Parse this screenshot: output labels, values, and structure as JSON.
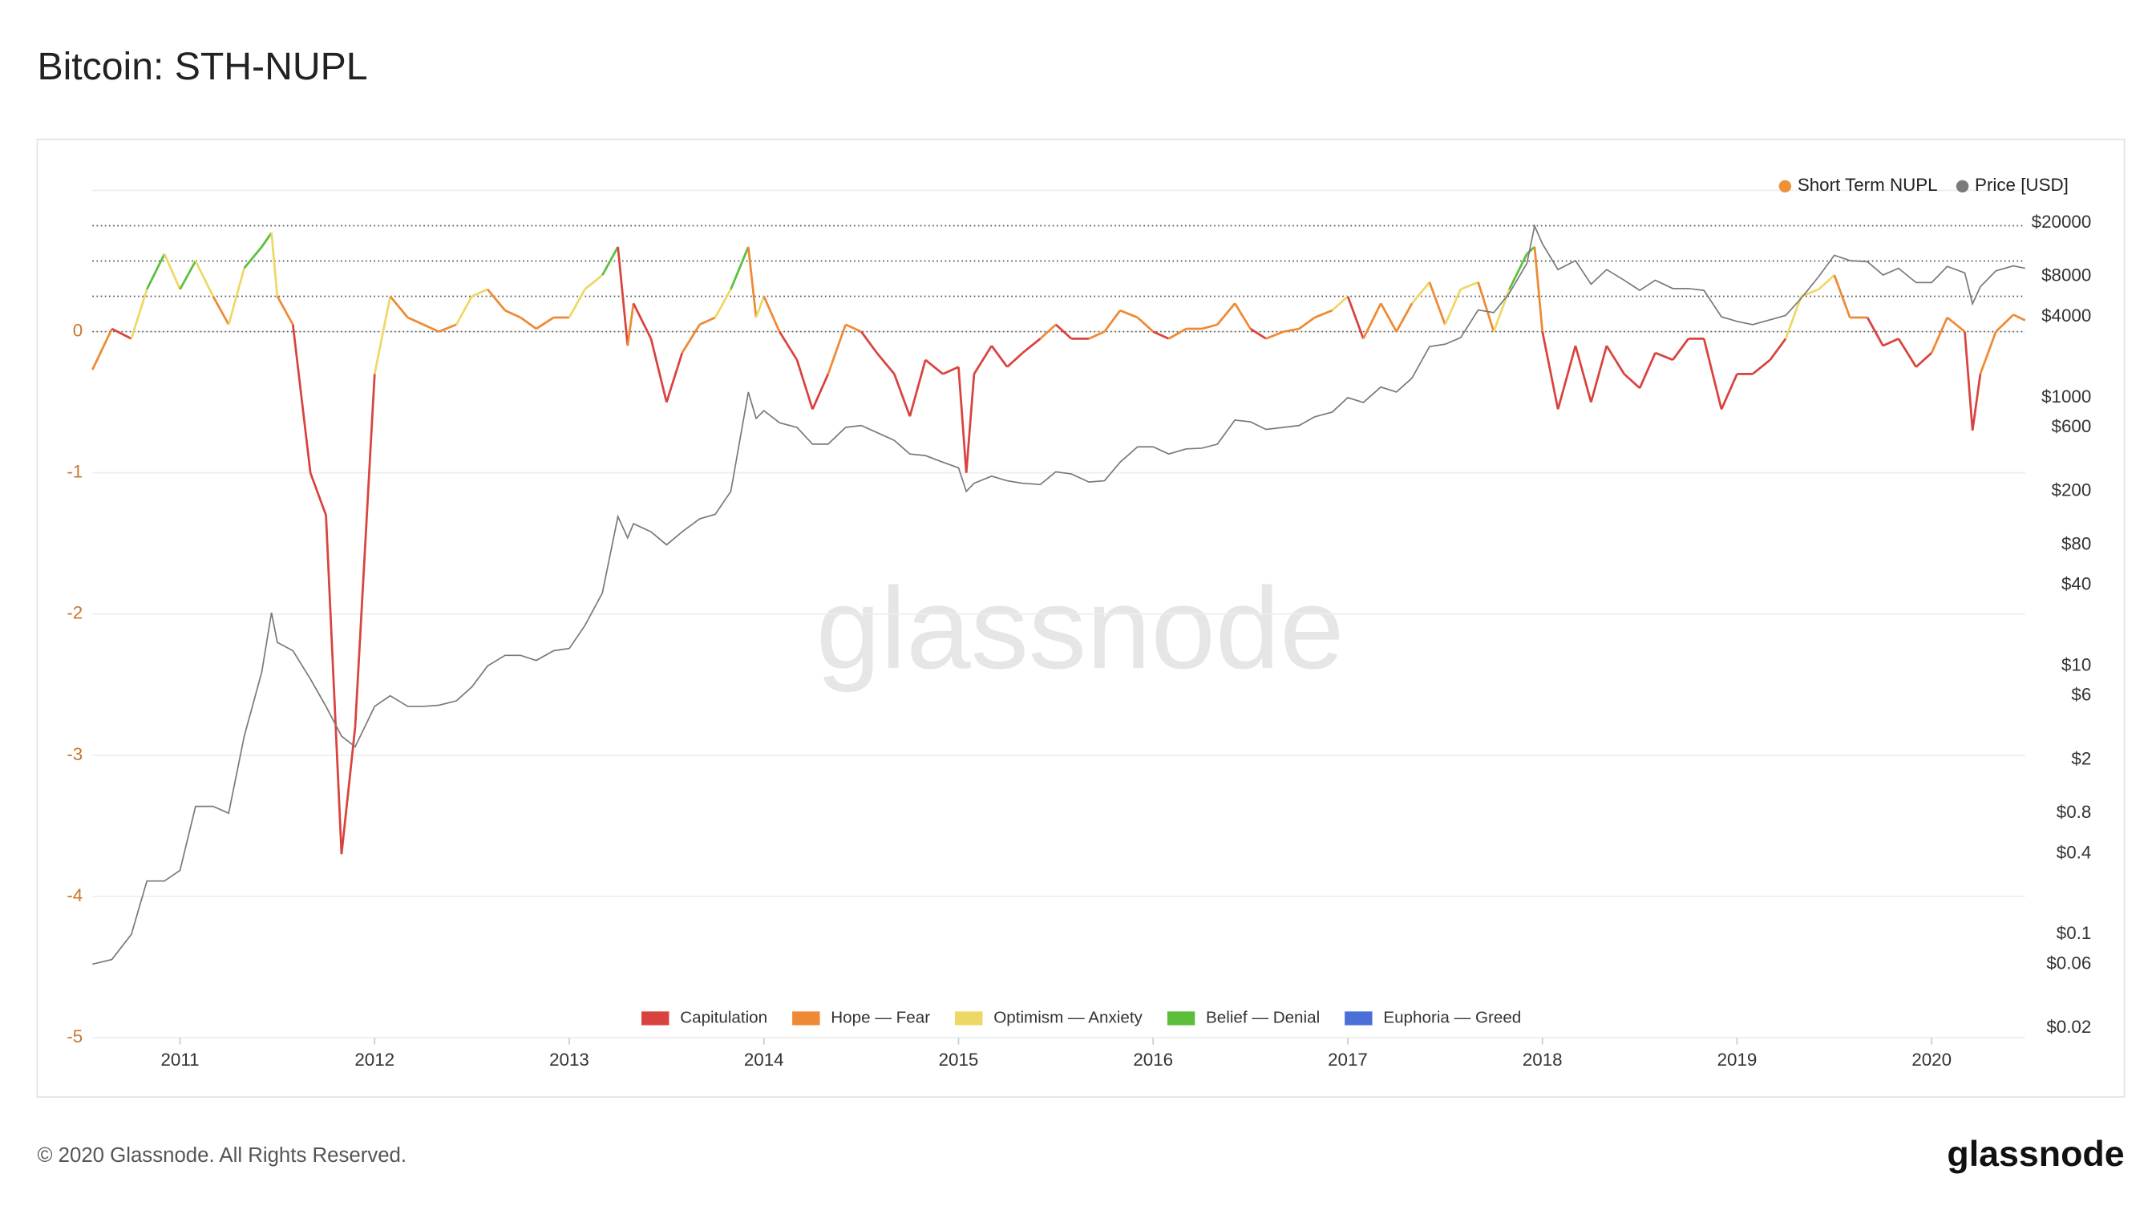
{
  "chart_data": {
    "type": "line",
    "title": "Bitcoin: STH-NUPL",
    "watermark": "glassnode",
    "footer": "© 2020 Glassnode. All Rights Reserved.",
    "logo": "glassnode",
    "x": [
      2010.55,
      2010.65,
      2010.75,
      2010.83,
      2010.92,
      2011.0,
      2011.08,
      2011.17,
      2011.25,
      2011.33,
      2011.42,
      2011.47,
      2011.5,
      2011.58,
      2011.67,
      2011.75,
      2011.83,
      2011.9,
      2012.0,
      2012.08,
      2012.17,
      2012.25,
      2012.33,
      2012.42,
      2012.5,
      2012.58,
      2012.67,
      2012.75,
      2012.83,
      2012.92,
      2013.0,
      2013.08,
      2013.17,
      2013.25,
      2013.3,
      2013.33,
      2013.42,
      2013.5,
      2013.58,
      2013.67,
      2013.75,
      2013.83,
      2013.92,
      2013.96,
      2014.0,
      2014.08,
      2014.17,
      2014.25,
      2014.33,
      2014.42,
      2014.5,
      2014.58,
      2014.67,
      2014.75,
      2014.83,
      2014.92,
      2015.0,
      2015.04,
      2015.08,
      2015.17,
      2015.25,
      2015.33,
      2015.42,
      2015.5,
      2015.58,
      2015.67,
      2015.75,
      2015.83,
      2015.92,
      2016.0,
      2016.08,
      2016.17,
      2016.25,
      2016.33,
      2016.42,
      2016.5,
      2016.58,
      2016.67,
      2016.75,
      2016.83,
      2016.92,
      2017.0,
      2017.08,
      2017.17,
      2017.25,
      2017.33,
      2017.42,
      2017.5,
      2017.58,
      2017.67,
      2017.75,
      2017.83,
      2017.92,
      2017.96,
      2018.0,
      2018.08,
      2018.17,
      2018.25,
      2018.33,
      2018.42,
      2018.5,
      2018.58,
      2018.67,
      2018.75,
      2018.83,
      2018.92,
      2019.0,
      2019.08,
      2019.17,
      2019.25,
      2019.33,
      2019.42,
      2019.5,
      2019.58,
      2019.67,
      2019.75,
      2019.83,
      2019.92,
      2020.0,
      2020.08,
      2020.17,
      2020.21,
      2020.25,
      2020.33,
      2020.42,
      2020.48
    ],
    "series": [
      {
        "name": "Short Term NUPL",
        "color": "#f0913a",
        "values": [
          -0.27,
          0.02,
          -0.05,
          0.3,
          0.55,
          0.3,
          0.5,
          0.25,
          0.05,
          0.45,
          0.6,
          0.7,
          0.25,
          0.05,
          -1.0,
          -1.3,
          -3.7,
          -2.8,
          -0.3,
          0.25,
          0.1,
          0.05,
          0.0,
          0.05,
          0.25,
          0.3,
          0.15,
          0.1,
          0.02,
          0.1,
          0.1,
          0.3,
          0.4,
          0.6,
          -0.1,
          0.2,
          -0.05,
          -0.5,
          -0.15,
          0.05,
          0.1,
          0.3,
          0.6,
          0.1,
          0.25,
          0.0,
          -0.2,
          -0.55,
          -0.3,
          0.05,
          0.0,
          -0.15,
          -0.3,
          -0.6,
          -0.2,
          -0.3,
          -0.25,
          -1.0,
          -0.3,
          -0.1,
          -0.25,
          -0.15,
          -0.05,
          0.05,
          -0.05,
          -0.05,
          0.0,
          0.15,
          0.1,
          0.0,
          -0.05,
          0.02,
          0.02,
          0.05,
          0.2,
          0.02,
          -0.05,
          0.0,
          0.02,
          0.1,
          0.15,
          0.25,
          -0.05,
          0.2,
          0.0,
          0.2,
          0.35,
          0.05,
          0.3,
          0.35,
          0.0,
          0.3,
          0.55,
          0.6,
          0.0,
          -0.55,
          -0.1,
          -0.5,
          -0.1,
          -0.3,
          -0.4,
          -0.15,
          -0.2,
          -0.05,
          -0.05,
          -0.55,
          -0.3,
          -0.3,
          -0.2,
          -0.05,
          0.25,
          0.3,
          0.4,
          0.1,
          0.1,
          -0.1,
          -0.05,
          -0.25,
          -0.15,
          0.1,
          0.0,
          -0.7,
          -0.3,
          0.0,
          0.12,
          0.08
        ]
      },
      {
        "name": "Price [USD]",
        "color": "#7a7a7a",
        "axis": "y2",
        "values": [
          0.06,
          0.065,
          0.1,
          0.25,
          0.25,
          0.3,
          0.9,
          0.9,
          0.8,
          3,
          9,
          25,
          15,
          13,
          8,
          5,
          3,
          2.5,
          5,
          6,
          5,
          5,
          5.1,
          5.5,
          7,
          10,
          12,
          12,
          11,
          13,
          13.5,
          20,
          35,
          130,
          90,
          115,
          100,
          80,
          100,
          125,
          135,
          200,
          1100,
          700,
          800,
          650,
          600,
          450,
          450,
          600,
          620,
          550,
          480,
          380,
          370,
          330,
          300,
          200,
          230,
          260,
          240,
          230,
          225,
          280,
          270,
          235,
          240,
          330,
          430,
          430,
          380,
          415,
          420,
          450,
          680,
          660,
          580,
          600,
          620,
          720,
          780,
          1000,
          920,
          1200,
          1100,
          1400,
          2400,
          2500,
          2800,
          4500,
          4300,
          6000,
          10000,
          19000,
          14000,
          9000,
          10500,
          7000,
          9000,
          7500,
          6300,
          7500,
          6500,
          6500,
          6300,
          4000,
          3700,
          3500,
          3800,
          4100,
          5500,
          8000,
          11500,
          10500,
          10300,
          8200,
          9200,
          7200,
          7200,
          9500,
          8500,
          5000,
          6700,
          8800,
          9600,
          9200
        ]
      }
    ],
    "zone_thresholds": [
      0,
      0.25,
      0.5,
      0.75
    ],
    "zones": [
      {
        "name": "Capitulation",
        "color": "#d9433f"
      },
      {
        "name": "Hope — Fear",
        "color": "#ee8a34"
      },
      {
        "name": "Optimism — Anxiety",
        "color": "#eed865"
      },
      {
        "name": "Belief — Denial",
        "color": "#5bbf3c"
      },
      {
        "name": "Euphoria — Greed",
        "color": "#4a6fd8"
      }
    ],
    "xlim": [
      2010.55,
      2020.48
    ],
    "xticks": [
      2011,
      2012,
      2013,
      2014,
      2015,
      2016,
      2017,
      2018,
      2019,
      2020
    ],
    "ylim": [
      -5,
      1
    ],
    "yticks": [
      -5,
      -4,
      -3,
      -2,
      -1,
      0
    ],
    "y2lim": [
      0.017,
      35000
    ],
    "y2log": true,
    "y2ticks": [
      {
        "value": 20000,
        "label": "$20000"
      },
      {
        "value": 8000,
        "label": "$8000"
      },
      {
        "value": 4000,
        "label": "$4000"
      },
      {
        "value": 1000,
        "label": "$1000"
      },
      {
        "value": 600,
        "label": "$600"
      },
      {
        "value": 200,
        "label": "$200"
      },
      {
        "value": 80,
        "label": "$80"
      },
      {
        "value": 40,
        "label": "$40"
      },
      {
        "value": 10,
        "label": "$10"
      },
      {
        "value": 6,
        "label": "$6"
      },
      {
        "value": 2,
        "label": "$2"
      },
      {
        "value": 0.8,
        "label": "$0.8"
      },
      {
        "value": 0.4,
        "label": "$0.4"
      },
      {
        "value": 0.1,
        "label": "$0.1"
      },
      {
        "value": 0.06,
        "label": "$0.06"
      },
      {
        "value": 0.02,
        "label": "$0.02"
      }
    ],
    "grid": true
  }
}
